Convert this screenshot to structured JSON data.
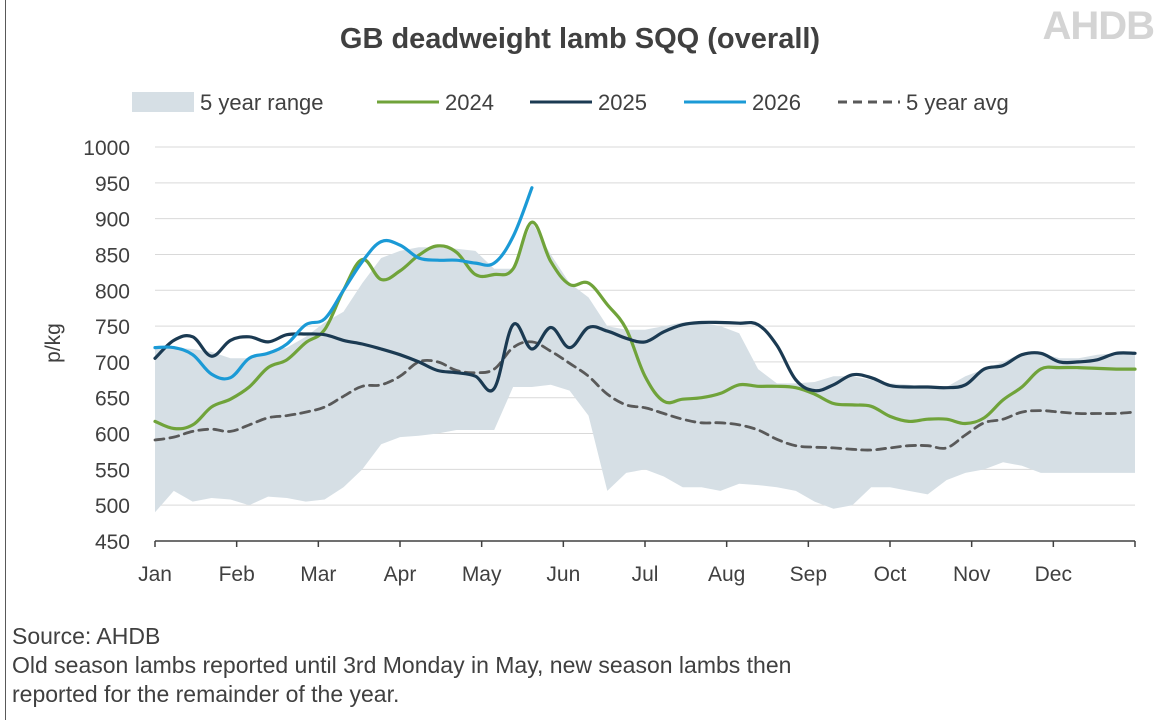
{
  "logo_text": "AHDB",
  "footer": {
    "source": "Source: AHDB",
    "note_line1": "Old season lambs reported until 3rd Monday in May, new season lambs then",
    "note_line2": "reported for the remainder of the year."
  },
  "chart_data": {
    "type": "line",
    "title": "GB deadweight lamb SQQ (overall)",
    "ylabel": "p/kg",
    "xlabel": "",
    "ylim": [
      450,
      1000
    ],
    "yticks": [
      450,
      500,
      550,
      600,
      650,
      700,
      750,
      800,
      850,
      900,
      950,
      1000
    ],
    "categories": [
      "Jan",
      "Feb",
      "Mar",
      "Apr",
      "May",
      "Jun",
      "Jul",
      "Aug",
      "Sep",
      "Oct",
      "Nov",
      "Dec"
    ],
    "x_unit": "week of year",
    "x_range": [
      1,
      53
    ],
    "grid": true,
    "legend_position": "top",
    "colors": {
      "range": "#d6dfe5",
      "s2024": "#70a33a",
      "s2025": "#1b3a52",
      "s2026": "#1b9ad6",
      "avg": "#595959"
    },
    "range_band": {
      "name": "5 year range",
      "x": [
        1,
        2,
        3,
        4,
        5,
        6,
        7,
        8,
        9,
        10,
        11,
        12,
        13,
        14,
        15,
        16,
        17,
        18,
        19,
        20,
        21,
        22,
        23,
        24,
        25,
        26,
        27,
        28,
        29,
        30,
        31,
        32,
        33,
        34,
        35,
        36,
        37,
        38,
        39,
        40,
        41,
        42,
        43,
        44,
        45,
        46,
        47,
        48,
        49,
        50,
        51,
        52,
        53
      ],
      "lower": [
        490,
        520,
        505,
        510,
        508,
        500,
        512,
        510,
        505,
        508,
        525,
        550,
        585,
        595,
        597,
        600,
        605,
        605,
        605,
        665,
        665,
        668,
        660,
        625,
        520,
        545,
        550,
        540,
        525,
        525,
        520,
        530,
        528,
        525,
        520,
        505,
        495,
        500,
        525,
        525,
        520,
        515,
        535,
        545,
        550,
        560,
        555,
        545,
        545,
        545,
        545,
        545,
        545
      ],
      "upper": [
        720,
        720,
        718,
        714,
        705,
        705,
        715,
        720,
        735,
        755,
        770,
        810,
        845,
        855,
        860,
        860,
        858,
        855,
        830,
        830,
        895,
        850,
        810,
        790,
        750,
        745,
        745,
        750,
        755,
        755,
        750,
        740,
        690,
        670,
        670,
        672,
        680,
        680,
        675,
        670,
        668,
        665,
        665,
        680,
        690,
        700,
        712,
        712,
        705,
        705,
        710,
        712,
        715
      ]
    },
    "series": [
      {
        "name": "2024",
        "x": [
          1,
          2,
          3,
          4,
          5,
          6,
          7,
          8,
          9,
          10,
          11,
          12,
          13,
          14,
          15,
          16,
          17,
          18,
          19,
          20,
          21,
          22,
          23,
          24,
          25,
          26,
          27,
          28,
          29,
          30,
          31,
          32,
          33,
          34,
          35,
          36,
          37,
          38,
          39,
          40,
          41,
          42,
          43,
          44,
          45,
          46,
          47,
          48,
          49,
          50,
          51,
          52,
          53
        ],
        "values": [
          617,
          607,
          612,
          637,
          648,
          665,
          692,
          703,
          727,
          745,
          800,
          843,
          815,
          827,
          849,
          862,
          853,
          822,
          822,
          830,
          895,
          840,
          808,
          810,
          780,
          746,
          680,
          645,
          648,
          650,
          656,
          668,
          666,
          666,
          664,
          655,
          642,
          640,
          638,
          624,
          617,
          620,
          620,
          614,
          622,
          647,
          665,
          690,
          692,
          692,
          691,
          690,
          690
        ]
      },
      {
        "name": "2025",
        "x": [
          1,
          2,
          3,
          4,
          5,
          6,
          7,
          8,
          9,
          10,
          11,
          12,
          13,
          14,
          15,
          16,
          17,
          18,
          19,
          20,
          21,
          22,
          23,
          24,
          25,
          26,
          27,
          28,
          29,
          30,
          31,
          32,
          33,
          34,
          35,
          36,
          37,
          38,
          39,
          40,
          41,
          42,
          43,
          44,
          45,
          46,
          47,
          48,
          49,
          50,
          51,
          52,
          53
        ],
        "values": [
          705,
          730,
          735,
          708,
          730,
          735,
          728,
          738,
          739,
          738,
          730,
          725,
          718,
          710,
          700,
          688,
          685,
          680,
          663,
          752,
          718,
          748,
          720,
          748,
          743,
          733,
          728,
          742,
          752,
          755,
          755,
          754,
          752,
          723,
          675,
          660,
          668,
          682,
          678,
          667,
          665,
          665,
          664,
          668,
          690,
          695,
          710,
          712,
          700,
          700,
          703,
          712,
          712
        ]
      },
      {
        "name": "2026",
        "x": [
          1,
          2,
          3,
          4,
          5,
          6,
          7,
          8,
          9,
          10,
          11,
          12,
          13,
          14,
          15,
          16,
          17,
          18,
          19,
          20,
          21
        ],
        "values": [
          720,
          720,
          710,
          683,
          678,
          705,
          712,
          725,
          752,
          760,
          800,
          840,
          868,
          863,
          845,
          842,
          842,
          838,
          838,
          875,
          943
        ]
      },
      {
        "name": "5 year avg",
        "x": [
          1,
          2,
          3,
          4,
          5,
          6,
          7,
          8,
          9,
          10,
          11,
          12,
          13,
          14,
          15,
          16,
          17,
          18,
          19,
          20,
          21,
          22,
          23,
          24,
          25,
          26,
          27,
          28,
          29,
          30,
          31,
          32,
          33,
          34,
          35,
          36,
          37,
          38,
          39,
          40,
          41,
          42,
          43,
          44,
          45,
          46,
          47,
          48,
          49,
          50,
          51,
          52,
          53
        ],
        "values": [
          591,
          595,
          603,
          606,
          603,
          612,
          622,
          625,
          630,
          637,
          652,
          666,
          668,
          680,
          700,
          700,
          688,
          685,
          690,
          720,
          728,
          715,
          698,
          680,
          655,
          640,
          636,
          628,
          620,
          615,
          615,
          612,
          605,
          592,
          583,
          581,
          580,
          578,
          577,
          580,
          583,
          583,
          580,
          598,
          615,
          620,
          630,
          632,
          630,
          628,
          628,
          628,
          630
        ]
      }
    ]
  }
}
